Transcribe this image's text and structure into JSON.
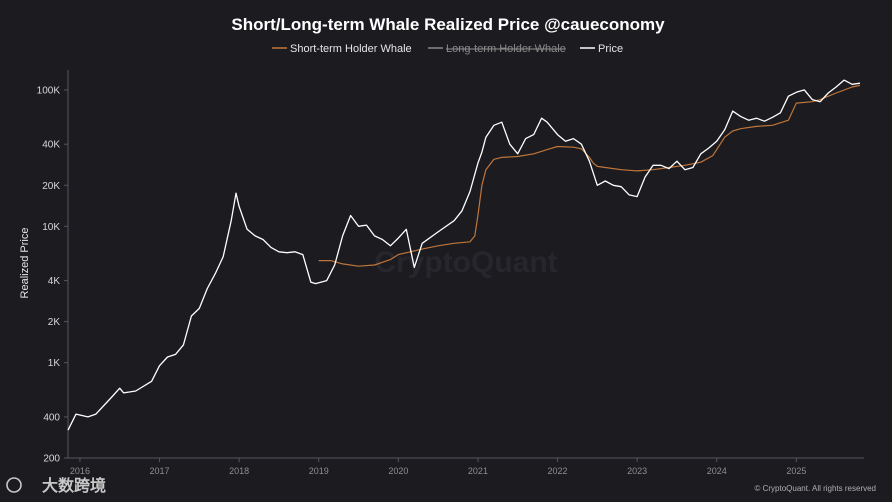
{
  "chart_data": {
    "type": "line",
    "title": "Short/Long-term Whale Realized Price @caueconomy",
    "ylabel": "Realized Price",
    "y_scale": "log",
    "ylim": [
      200,
      140000
    ],
    "y_ticks": [
      200,
      400,
      1000,
      2000,
      4000,
      10000,
      20000,
      40000,
      100000
    ],
    "y_tick_labels": [
      "200",
      "400",
      "1K",
      "2K",
      "4K",
      "10K",
      "20K",
      "40K",
      "100K"
    ],
    "x_ticks": [
      "2016",
      "2017",
      "2018",
      "2019",
      "2020",
      "2021",
      "2022",
      "2023",
      "2024",
      "2025"
    ],
    "xlim": [
      2015.85,
      2025.85
    ],
    "legend_position": "top-center",
    "legend": [
      {
        "label": "Short-term Holder Whale",
        "color": "#c0763a",
        "visible": true
      },
      {
        "label": "Long-term Holder Whale",
        "color": "#8a8a8a",
        "visible": false
      },
      {
        "label": "Price",
        "color": "#ffffff",
        "visible": true
      }
    ],
    "series": [
      {
        "name": "Short-term Holder Whale",
        "color": "#c0763a",
        "x": [
          2019.0,
          2019.15,
          2019.3,
          2019.5,
          2019.7,
          2019.9,
          2020.0,
          2020.15,
          2020.3,
          2020.5,
          2020.7,
          2020.9,
          2020.96,
          2021.0,
          2021.05,
          2021.1,
          2021.2,
          2021.3,
          2021.5,
          2021.7,
          2021.9,
          2022.0,
          2022.2,
          2022.3,
          2022.4,
          2022.45,
          2022.5,
          2022.6,
          2022.8,
          2023.0,
          2023.2,
          2023.4,
          2023.6,
          2023.8,
          2023.95,
          2024.1,
          2024.2,
          2024.3,
          2024.5,
          2024.7,
          2024.9,
          2025.0,
          2025.2,
          2025.3,
          2025.5,
          2025.7,
          2025.8
        ],
        "y": [
          5600,
          5600,
          5300,
          5100,
          5200,
          5700,
          6200,
          6500,
          6800,
          7200,
          7500,
          7700,
          8500,
          12000,
          20000,
          26000,
          31000,
          32000,
          32500,
          34000,
          37000,
          38500,
          38000,
          37000,
          32000,
          29000,
          27500,
          27000,
          26000,
          25500,
          26000,
          27000,
          28000,
          29500,
          33000,
          45000,
          50000,
          52000,
          54000,
          55000,
          60000,
          80000,
          82000,
          85000,
          95000,
          105000,
          108000
        ]
      },
      {
        "name": "Price",
        "color": "#ffffff",
        "x": [
          2015.85,
          2015.95,
          2016.1,
          2016.2,
          2016.4,
          2016.5,
          2016.55,
          2016.7,
          2016.9,
          2017.0,
          2017.1,
          2017.2,
          2017.3,
          2017.4,
          2017.5,
          2017.6,
          2017.7,
          2017.8,
          2017.9,
          2017.96,
          2018.0,
          2018.1,
          2018.2,
          2018.3,
          2018.4,
          2018.5,
          2018.6,
          2018.7,
          2018.8,
          2018.9,
          2018.96,
          2019.1,
          2019.2,
          2019.3,
          2019.4,
          2019.5,
          2019.6,
          2019.7,
          2019.8,
          2019.9,
          2020.0,
          2020.1,
          2020.2,
          2020.3,
          2020.5,
          2020.7,
          2020.8,
          2020.9,
          2021.0,
          2021.05,
          2021.1,
          2021.2,
          2021.3,
          2021.4,
          2021.5,
          2021.6,
          2021.7,
          2021.8,
          2021.87,
          2022.0,
          2022.1,
          2022.2,
          2022.3,
          2022.4,
          2022.5,
          2022.6,
          2022.7,
          2022.8,
          2022.9,
          2023.0,
          2023.1,
          2023.2,
          2023.3,
          2023.4,
          2023.5,
          2023.6,
          2023.7,
          2023.8,
          2023.9,
          2024.0,
          2024.1,
          2024.2,
          2024.3,
          2024.4,
          2024.5,
          2024.6,
          2024.7,
          2024.8,
          2024.9,
          2025.0,
          2025.1,
          2025.2,
          2025.3,
          2025.4,
          2025.5,
          2025.6,
          2025.7,
          2025.8
        ],
        "y": [
          320,
          420,
          400,
          420,
          560,
          650,
          600,
          620,
          730,
          950,
          1100,
          1150,
          1350,
          2200,
          2500,
          3500,
          4500,
          6000,
          11000,
          17500,
          14000,
          9500,
          8500,
          8000,
          7000,
          6500,
          6400,
          6500,
          6200,
          3900,
          3800,
          4000,
          5200,
          8500,
          12000,
          10000,
          10200,
          8500,
          8000,
          7200,
          8200,
          9500,
          5000,
          7500,
          9100,
          11000,
          13000,
          18000,
          29000,
          35000,
          45000,
          55000,
          58000,
          40000,
          34000,
          44000,
          47000,
          62000,
          58000,
          47000,
          42000,
          44000,
          40000,
          30000,
          20000,
          21500,
          20000,
          19500,
          17000,
          16500,
          23000,
          28000,
          28000,
          26500,
          30000,
          26000,
          27000,
          34000,
          37500,
          42000,
          51000,
          70000,
          64000,
          60000,
          62000,
          59000,
          63000,
          68000,
          90000,
          96000,
          100000,
          85000,
          82000,
          95000,
          105000,
          118000,
          110000,
          112000
        ]
      }
    ]
  },
  "watermark": "CryptoQuant",
  "credit": "© CryptoQuant. All rights reserved",
  "brand_logo_text": "大数跨境"
}
